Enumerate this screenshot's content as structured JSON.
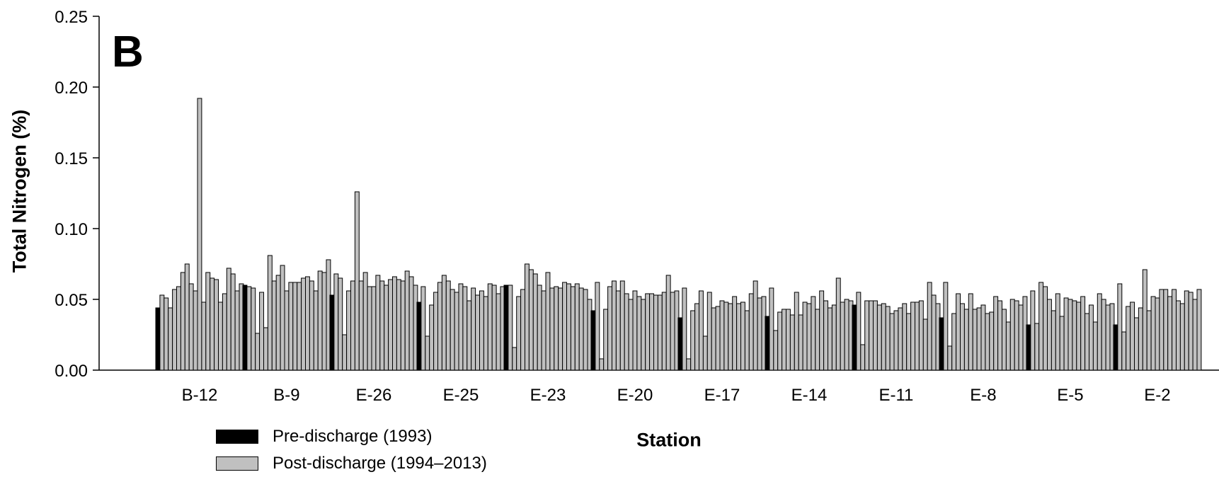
{
  "panel_label": "B",
  "legend": {
    "pre": "Pre-discharge (1993)",
    "post": "Post-discharge (1994–2013)"
  },
  "colors": {
    "pre": "#000000",
    "post": "#c0c0c0",
    "axis": "#000000"
  },
  "chart_data": {
    "type": "bar",
    "title": "",
    "xlabel": "Station",
    "ylabel": "Total Nitrogen (%)",
    "ylim": [
      0,
      0.25
    ],
    "yticks": [
      "0.00",
      "0.05",
      "0.10",
      "0.15",
      "0.20",
      "0.25"
    ],
    "grid": false,
    "legend_position": "bottom-left",
    "categories": [
      "B-12",
      "B-9",
      "E-26",
      "E-25",
      "E-23",
      "E-20",
      "E-17",
      "E-14",
      "E-11",
      "E-8",
      "E-5",
      "E-2"
    ],
    "series": [
      {
        "name": "Pre-discharge (1993)",
        "values": [
          0.044,
          0.06,
          0.053,
          0.048,
          0.06,
          0.042,
          0.037,
          0.038,
          0.046,
          0.037,
          0.032,
          0.032
        ]
      },
      {
        "name": "Post-discharge (1994–2013)",
        "values": [
          [
            0.053,
            0.051,
            0.044,
            0.057,
            0.059,
            0.069,
            0.075,
            0.061,
            0.056,
            0.192,
            0.048,
            0.069,
            0.065,
            0.064,
            0.048,
            0.054,
            0.072,
            0.068,
            0.056,
            0.061
          ],
          [
            0.059,
            0.058,
            0.026,
            0.055,
            0.03,
            0.081,
            0.063,
            0.067,
            0.074,
            0.056,
            0.062,
            0.062,
            0.062,
            0.065,
            0.066,
            0.063,
            0.056,
            0.07,
            0.069,
            0.078
          ],
          [
            0.068,
            0.065,
            0.025,
            0.056,
            0.063,
            0.126,
            0.063,
            0.069,
            0.059,
            0.059,
            0.067,
            0.063,
            0.06,
            0.064,
            0.066,
            0.064,
            0.063,
            0.07,
            0.066,
            0.06
          ],
          [
            0.059,
            0.024,
            0.046,
            0.055,
            0.062,
            0.067,
            0.063,
            0.057,
            0.055,
            0.061,
            0.059,
            0.049,
            0.058,
            0.053,
            0.056,
            0.052,
            0.061,
            0.06,
            0.054,
            0.059
          ],
          [
            0.06,
            0.016,
            0.052,
            0.057,
            0.075,
            0.071,
            0.068,
            0.06,
            0.056,
            0.069,
            0.058,
            0.059,
            0.058,
            0.062,
            0.061,
            0.059,
            0.061,
            0.058,
            0.057,
            0.05
          ],
          [
            0.062,
            0.008,
            0.043,
            0.059,
            0.063,
            0.056,
            0.063,
            0.054,
            0.05,
            0.056,
            0.052,
            0.05,
            0.054,
            0.054,
            0.053,
            0.053,
            0.055,
            0.067,
            0.055,
            0.056
          ],
          [
            0.058,
            0.008,
            0.042,
            0.047,
            0.056,
            0.024,
            0.055,
            0.044,
            0.045,
            0.049,
            0.048,
            0.047,
            0.052,
            0.047,
            0.048,
            0.042,
            0.054,
            0.063,
            0.051,
            0.052
          ],
          [
            0.058,
            0.028,
            0.041,
            0.043,
            0.043,
            0.039,
            0.055,
            0.039,
            0.048,
            0.047,
            0.052,
            0.043,
            0.056,
            0.049,
            0.044,
            0.046,
            0.065,
            0.048,
            0.05,
            0.049
          ],
          [
            0.055,
            0.018,
            0.049,
            0.049,
            0.049,
            0.046,
            0.047,
            0.045,
            0.04,
            0.042,
            0.044,
            0.047,
            0.04,
            0.048,
            0.048,
            0.049,
            0.036,
            0.062,
            0.053,
            0.047
          ],
          [
            0.062,
            0.017,
            0.04,
            0.054,
            0.047,
            0.043,
            0.054,
            0.043,
            0.044,
            0.046,
            0.04,
            0.041,
            0.052,
            0.049,
            0.043,
            0.034,
            0.05,
            0.049,
            0.046,
            0.052
          ],
          [
            0.056,
            0.033,
            0.062,
            0.059,
            0.05,
            0.042,
            0.054,
            0.038,
            0.051,
            0.05,
            0.049,
            0.048,
            0.052,
            0.04,
            0.046,
            0.034,
            0.054,
            0.05,
            0.046,
            0.047
          ],
          [
            0.061,
            0.027,
            0.045,
            0.048,
            0.037,
            0.044,
            0.071,
            0.042,
            0.052,
            0.051,
            0.057,
            0.057,
            0.052,
            0.057,
            0.049,
            0.047,
            0.056,
            0.055,
            0.05,
            0.057
          ]
        ]
      }
    ]
  }
}
